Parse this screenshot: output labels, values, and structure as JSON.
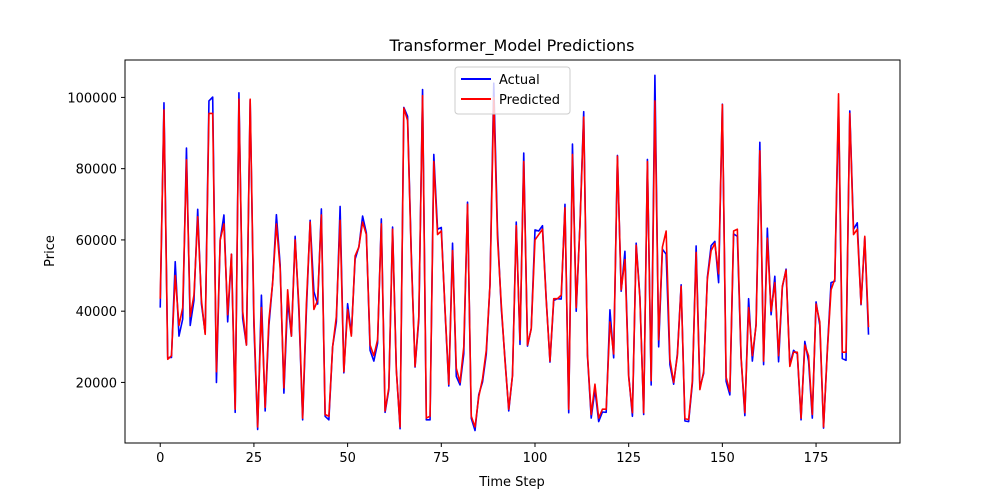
{
  "chart_data": {
    "type": "line",
    "title": "Transformer_Model Predictions",
    "xlabel": "Time Step",
    "ylabel": "Price",
    "xlim": [
      -9.4,
      197.4
    ],
    "ylim": [
      3000,
      110500
    ],
    "xticks": [
      0,
      25,
      50,
      75,
      100,
      125,
      150,
      175
    ],
    "yticks": [
      20000,
      40000,
      60000,
      80000,
      100000
    ],
    "legend": "upper center",
    "grid": false,
    "series": [
      {
        "name": "Actual",
        "color": "#0000ff",
        "values": [
          41000,
          98500,
          27000,
          27000,
          53900,
          33000,
          37800,
          85800,
          36000,
          43000,
          68600,
          42000,
          33800,
          99000,
          100100,
          20000,
          60000,
          67000,
          37000,
          56000,
          11600,
          101300,
          38000,
          30500,
          99200,
          36000,
          6800,
          44500,
          12000,
          36000,
          48000,
          67100,
          53000,
          17000,
          43000,
          33000,
          61000,
          40000,
          9500,
          40000,
          65500,
          45500,
          42000,
          68700,
          10500,
          9500,
          30000,
          37000,
          69400,
          22700,
          42100,
          33600,
          54600,
          58000,
          66700,
          62000,
          29000,
          26000,
          31000,
          65900,
          11600,
          18000,
          63600,
          23700,
          7000,
          97200,
          94700,
          56000,
          24300,
          37600,
          102200,
          9500,
          9500,
          84000,
          63000,
          63500,
          40000,
          19000,
          59100,
          21700,
          19300,
          28000,
          70600,
          9900,
          6500,
          16600,
          20100,
          27900,
          47500,
          104000,
          62500,
          40900,
          26600,
          12000,
          22000,
          65000,
          30700,
          84400,
          30200,
          35200,
          62800,
          62500,
          64000,
          43400,
          25700,
          43000,
          43500,
          43400,
          70000,
          11500,
          86900,
          40000,
          64400,
          96000,
          27600,
          10000,
          18000,
          9000,
          11700,
          11600,
          40400,
          26900,
          83700,
          45600,
          56800,
          22000,
          10500,
          59100,
          44000,
          11000,
          82600,
          19300,
          106200,
          30000,
          57400,
          56000,
          25000,
          19500,
          28100,
          47400,
          9200,
          9000,
          19800,
          58300,
          18600,
          22500,
          49500,
          58400,
          59600,
          48000,
          98100,
          20300,
          16500,
          61700,
          61000,
          26700,
          10700,
          43500,
          26000,
          36500,
          87400,
          25000,
          63300,
          39000,
          49800,
          25800,
          46700,
          51800,
          25000,
          29000,
          28000,
          9500,
          31500,
          26000,
          10000,
          42600,
          36000,
          7200,
          29000,
          48000,
          48400,
          98000,
          26700,
          26200,
          96200,
          63000,
          64800,
          41800,
          60700,
          33400
        ]
      },
      {
        "name": "Predicted",
        "color": "#ff0000",
        "values": [
          43500,
          96500,
          26500,
          27500,
          50000,
          36000,
          41000,
          82500,
          38500,
          44500,
          66500,
          43000,
          33500,
          95500,
          95500,
          23000,
          60000,
          64500,
          39000,
          56000,
          12500,
          99500,
          40000,
          30500,
          99500,
          38000,
          7500,
          41000,
          13000,
          37500,
          48000,
          64500,
          52000,
          18500,
          46000,
          33000,
          60000,
          41500,
          10000,
          42000,
          65000,
          40500,
          43000,
          67000,
          11000,
          10500,
          30000,
          38500,
          65500,
          23000,
          40500,
          33000,
          55500,
          58000,
          65000,
          61500,
          30500,
          27500,
          32000,
          64500,
          12000,
          18500,
          63000,
          23500,
          7500,
          97000,
          93500,
          55000,
          24500,
          38500,
          100500,
          10000,
          10500,
          82000,
          61500,
          62500,
          40500,
          19500,
          57000,
          24000,
          20000,
          30000,
          70000,
          10500,
          7500,
          16000,
          21000,
          29000,
          47500,
          100000,
          60500,
          42000,
          26000,
          12500,
          22000,
          64000,
          32000,
          82000,
          30500,
          35000,
          60000,
          61500,
          63000,
          43000,
          26000,
          43500,
          43500,
          44500,
          69000,
          12500,
          84000,
          41000,
          64000,
          94500,
          28000,
          11000,
          19500,
          10000,
          12500,
          12500,
          37000,
          28000,
          83500,
          46000,
          54500,
          21500,
          11500,
          58500,
          43500,
          11500,
          82000,
          20500,
          99000,
          32000,
          58000,
          62500,
          26500,
          20000,
          27500,
          47000,
          9800,
          9600,
          20500,
          56500,
          18000,
          23000,
          49000,
          57000,
          59000,
          50500,
          98000,
          21500,
          17500,
          62500,
          63000,
          27000,
          11500,
          41000,
          27500,
          36000,
          85000,
          26000,
          60500,
          40000,
          48000,
          27500,
          47000,
          51500,
          24500,
          28500,
          28500,
          10000,
          30500,
          27500,
          11000,
          42000,
          37000,
          7500,
          28500,
          46000,
          49000,
          101000,
          28500,
          28500,
          95500,
          61500,
          63000,
          42000,
          61000,
          35500
        ]
      }
    ]
  }
}
